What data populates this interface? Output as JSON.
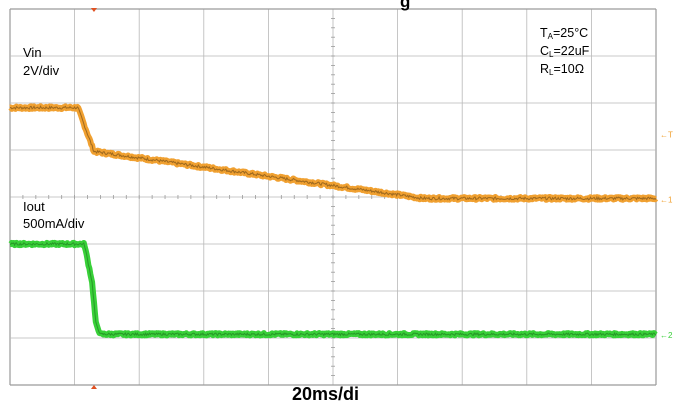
{
  "chart_data": {
    "type": "line",
    "title_top_partial": "g",
    "time_scale_partial": "20ms/di",
    "conditions": {
      "ta_main": "T",
      "ta_sub": "A",
      "ta_value": "=25°C",
      "cl_main": "C",
      "cl_sub": "L",
      "cl_value": "=22uF",
      "rl_main": "R",
      "rl_sub": "L",
      "rl_value": "=10Ω"
    },
    "x_divisions": 10,
    "y_divisions": 8,
    "grid": true,
    "series": [
      {
        "name": "Vin",
        "scale": "2V/div",
        "color": "#f0a030",
        "trace_color": "#5a3a10",
        "x_div": [
          0.0,
          1.05,
          1.3,
          6.4,
          10.0
        ],
        "y_div": [
          5.9,
          5.9,
          4.97,
          3.97,
          3.97
        ],
        "noise_div": 0.06
      },
      {
        "name": "Iout",
        "scale": "500mA/div",
        "color": "#38d038",
        "trace_color": "#1a6a1a",
        "x_div": [
          0.0,
          1.15,
          1.27,
          1.33,
          1.4,
          10.0
        ],
        "y_div": [
          3.0,
          3.0,
          2.2,
          1.3,
          1.08,
          1.08
        ],
        "noise_div": 0.05
      }
    ],
    "channel_markers": [
      "T",
      "1",
      "2"
    ]
  }
}
